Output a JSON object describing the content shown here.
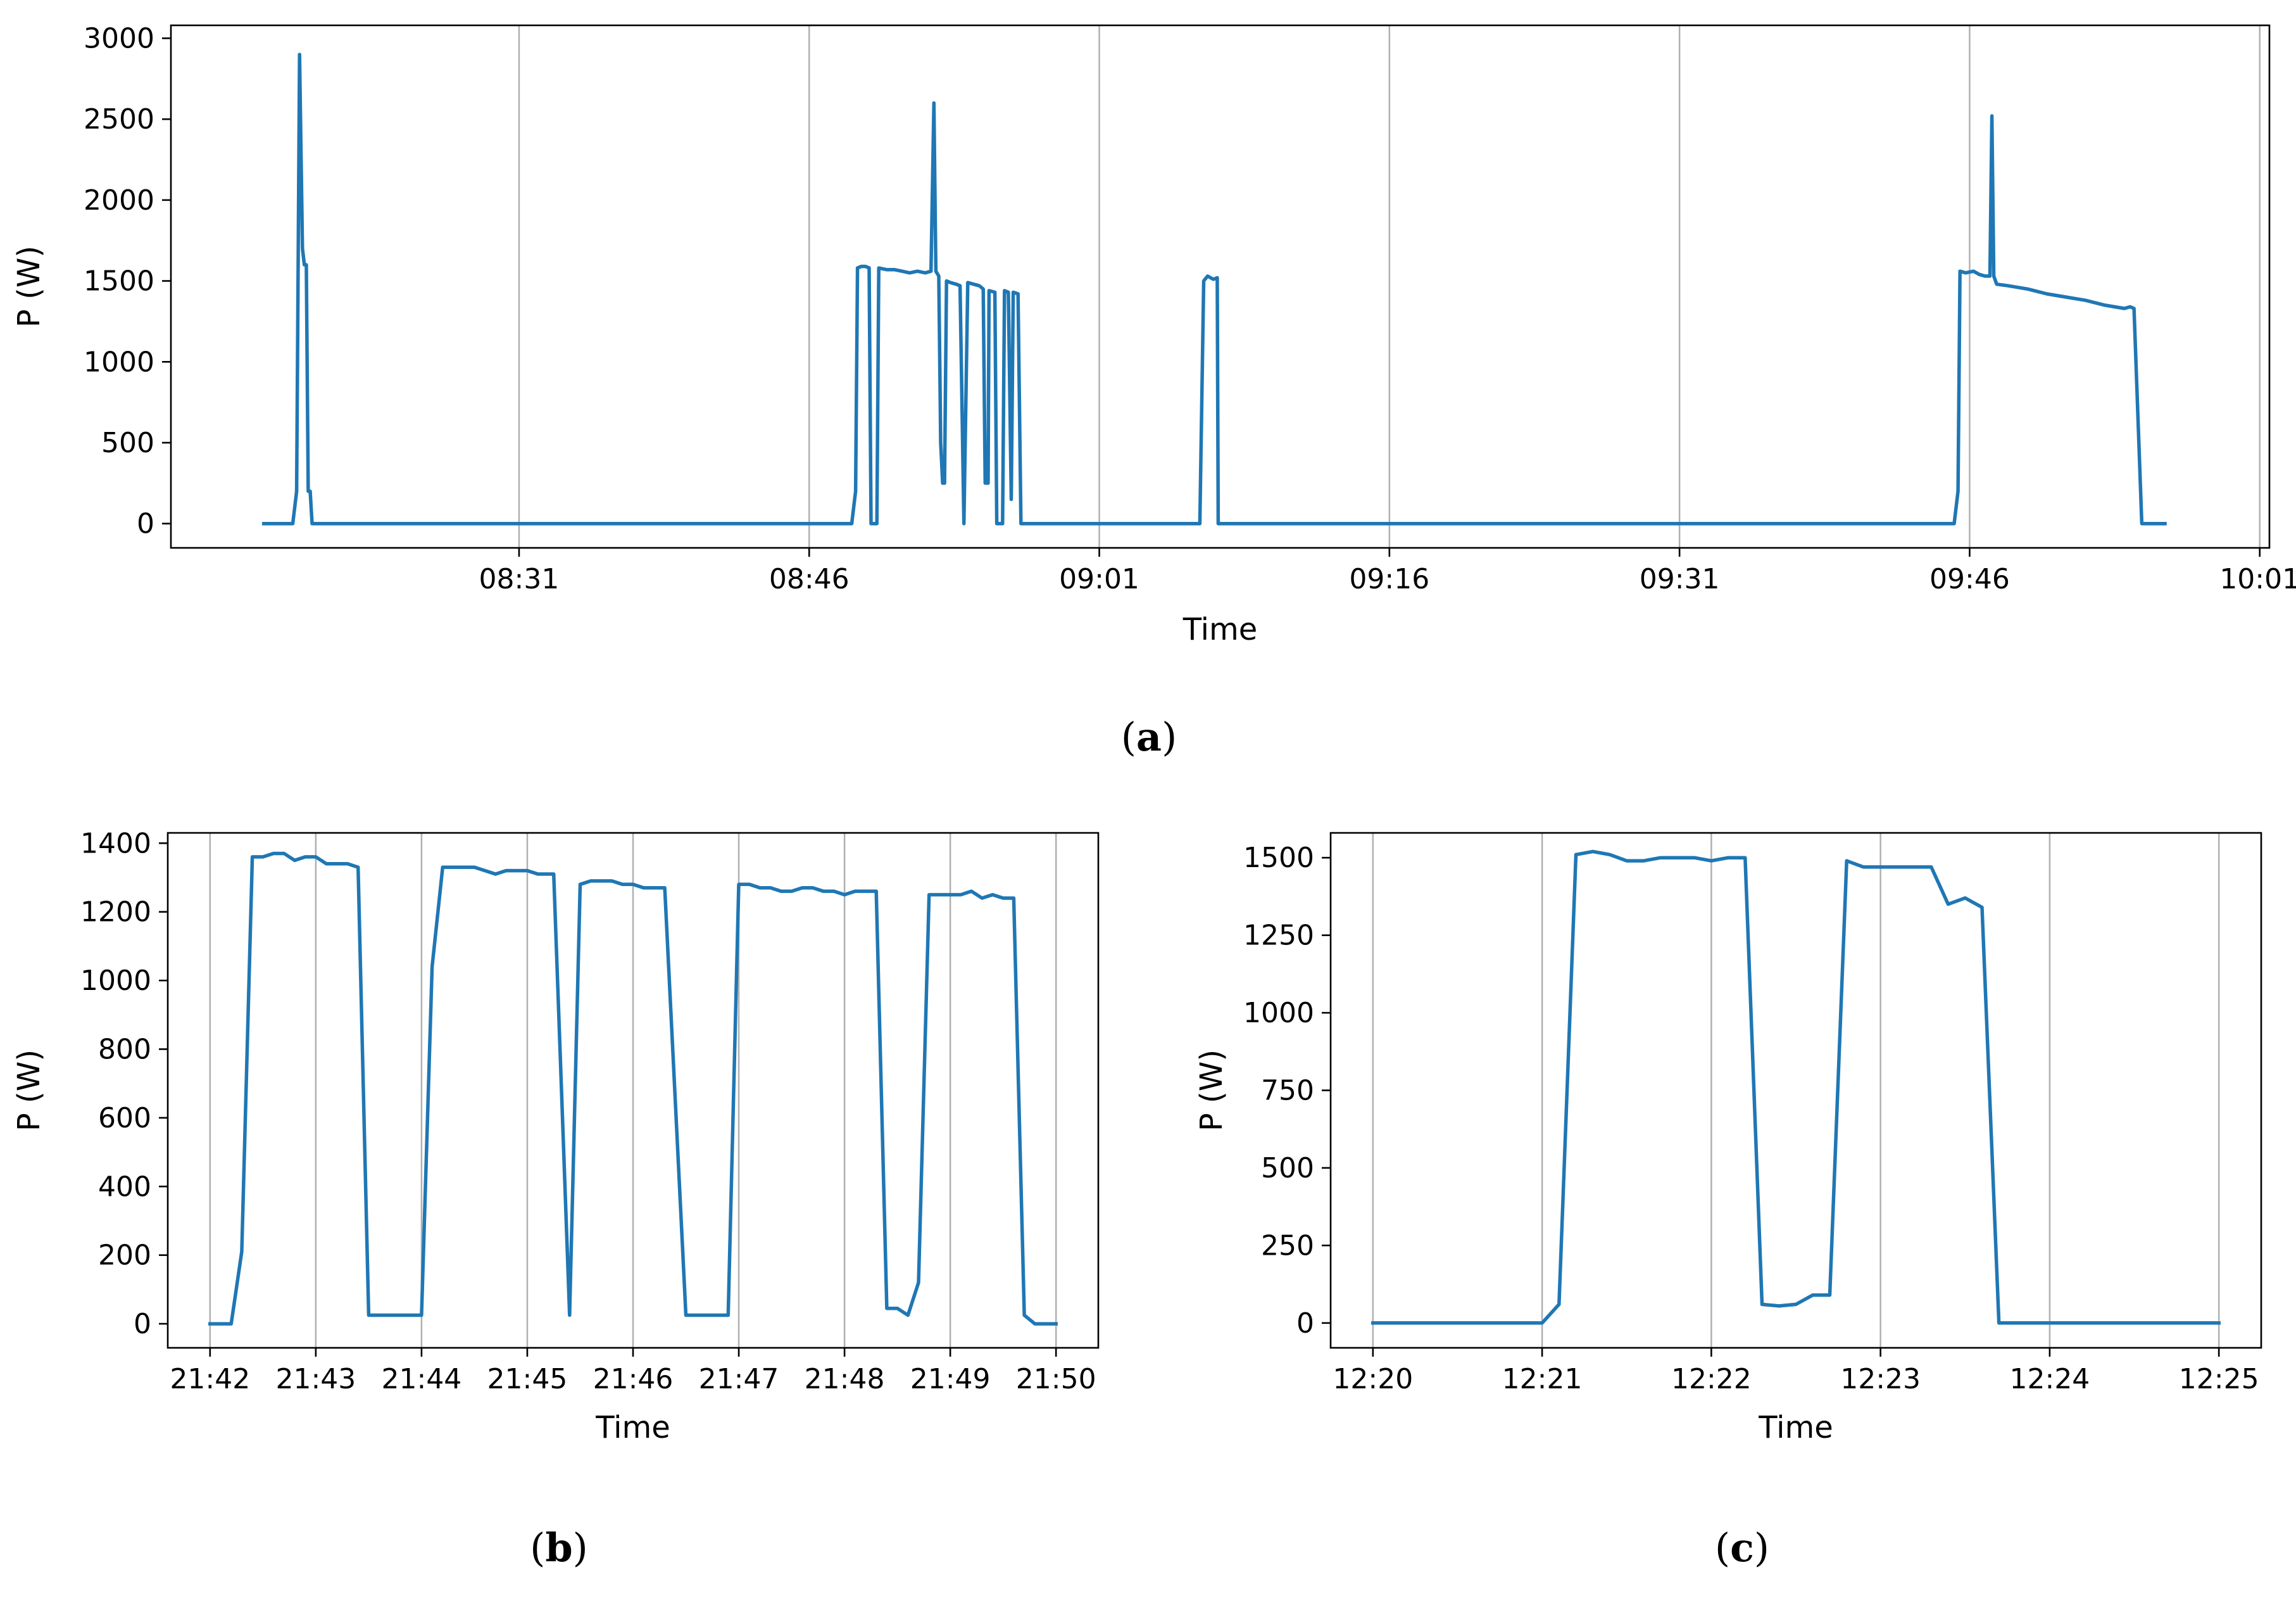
{
  "chart_data": [
    {
      "id": "a",
      "type": "line",
      "caption_letter": "a",
      "xlabel": "Time",
      "ylabel": "P (W)",
      "x_unit": "minutes since 08:13",
      "xlim": [
        0,
        108.5
      ],
      "ylim": [
        -150,
        3080
      ],
      "yticks": [
        0,
        500,
        1000,
        1500,
        2000,
        2500,
        3000
      ],
      "ytick_labels": [
        "0",
        "500",
        "1000",
        "1500",
        "2000",
        "2500",
        "3000"
      ],
      "xticks": [
        18,
        33,
        48,
        63,
        78,
        93,
        108
      ],
      "xtick_labels": [
        "08:31",
        "08:46",
        "09:01",
        "09:16",
        "09:31",
        "09:46",
        "10:01"
      ],
      "grid": "vertical",
      "color": "#1f77b4",
      "series": [
        {
          "name": "P (W)",
          "points": [
            [
              4.8,
              0
            ],
            [
              6.3,
              0
            ],
            [
              6.5,
              200
            ],
            [
              6.65,
              2900
            ],
            [
              6.8,
              1700
            ],
            [
              6.9,
              1600
            ],
            [
              7.0,
              1600
            ],
            [
              7.1,
              200
            ],
            [
              7.2,
              200
            ],
            [
              7.3,
              0
            ],
            [
              35.2,
              0
            ],
            [
              35.4,
              200
            ],
            [
              35.5,
              1580
            ],
            [
              35.7,
              1590
            ],
            [
              35.9,
              1590
            ],
            [
              36.1,
              1580
            ],
            [
              36.2,
              0
            ],
            [
              36.5,
              0
            ],
            [
              36.6,
              1580
            ],
            [
              37.0,
              1570
            ],
            [
              37.4,
              1570
            ],
            [
              37.8,
              1560
            ],
            [
              38.2,
              1550
            ],
            [
              38.6,
              1560
            ],
            [
              39.0,
              1550
            ],
            [
              39.3,
              1560
            ],
            [
              39.45,
              2600
            ],
            [
              39.55,
              1560
            ],
            [
              39.7,
              1530
            ],
            [
              39.8,
              500
            ],
            [
              39.9,
              250
            ],
            [
              40.0,
              250
            ],
            [
              40.1,
              1500
            ],
            [
              40.3,
              1490
            ],
            [
              40.6,
              1480
            ],
            [
              40.8,
              1470
            ],
            [
              41.0,
              0
            ],
            [
              41.2,
              1490
            ],
            [
              41.5,
              1480
            ],
            [
              41.8,
              1470
            ],
            [
              42.0,
              1450
            ],
            [
              42.1,
              250
            ],
            [
              42.25,
              250
            ],
            [
              42.3,
              1440
            ],
            [
              42.6,
              1430
            ],
            [
              42.7,
              0
            ],
            [
              43.0,
              0
            ],
            [
              43.1,
              1440
            ],
            [
              43.3,
              1430
            ],
            [
              43.45,
              150
            ],
            [
              43.55,
              1430
            ],
            [
              43.8,
              1420
            ],
            [
              43.95,
              0
            ],
            [
              53.2,
              0
            ],
            [
              53.4,
              1500
            ],
            [
              53.6,
              1530
            ],
            [
              53.9,
              1510
            ],
            [
              54.1,
              1520
            ],
            [
              54.15,
              0
            ],
            [
              92.2,
              0
            ],
            [
              92.4,
              200
            ],
            [
              92.5,
              1560
            ],
            [
              92.8,
              1550
            ],
            [
              93.2,
              1560
            ],
            [
              93.5,
              1540
            ],
            [
              93.8,
              1530
            ],
            [
              94.05,
              1530
            ],
            [
              94.15,
              2520
            ],
            [
              94.25,
              1530
            ],
            [
              94.4,
              1480
            ],
            [
              95.0,
              1470
            ],
            [
              96.0,
              1450
            ],
            [
              97.0,
              1420
            ],
            [
              98.0,
              1400
            ],
            [
              99.0,
              1380
            ],
            [
              100.0,
              1350
            ],
            [
              101.0,
              1330
            ],
            [
              101.3,
              1340
            ],
            [
              101.5,
              1330
            ],
            [
              101.9,
              0
            ],
            [
              103.1,
              0
            ]
          ]
        }
      ]
    },
    {
      "id": "b",
      "type": "line",
      "caption_letter": "b",
      "xlabel": "Time",
      "ylabel": "P (W)",
      "x_unit": "minutes since 21:42",
      "xlim": [
        -0.4,
        8.4
      ],
      "ylim": [
        -70,
        1430
      ],
      "yticks": [
        0,
        200,
        400,
        600,
        800,
        1000,
        1200,
        1400
      ],
      "ytick_labels": [
        "0",
        "200",
        "400",
        "600",
        "800",
        "1000",
        "1200",
        "1400"
      ],
      "xticks": [
        0,
        1,
        2,
        3,
        4,
        5,
        6,
        7,
        8
      ],
      "xtick_labels": [
        "21:42",
        "21:43",
        "21:44",
        "21:45",
        "21:46",
        "21:47",
        "21:48",
        "21:49",
        "21:50"
      ],
      "grid": "vertical",
      "color": "#1f77b4",
      "series": [
        {
          "name": "P (W)",
          "points": [
            [
              0.0,
              0
            ],
            [
              0.2,
              0
            ],
            [
              0.3,
              210
            ],
            [
              0.4,
              1360
            ],
            [
              0.5,
              1360
            ],
            [
              0.6,
              1370
            ],
            [
              0.7,
              1370
            ],
            [
              0.8,
              1350
            ],
            [
              0.9,
              1360
            ],
            [
              1.0,
              1360
            ],
            [
              1.1,
              1340
            ],
            [
              1.2,
              1340
            ],
            [
              1.3,
              1340
            ],
            [
              1.4,
              1330
            ],
            [
              1.5,
              25
            ],
            [
              1.6,
              25
            ],
            [
              1.7,
              25
            ],
            [
              1.8,
              25
            ],
            [
              2.0,
              25
            ],
            [
              2.1,
              1040
            ],
            [
              2.2,
              1330
            ],
            [
              2.3,
              1330
            ],
            [
              2.4,
              1330
            ],
            [
              2.5,
              1330
            ],
            [
              2.6,
              1320
            ],
            [
              2.7,
              1310
            ],
            [
              2.8,
              1320
            ],
            [
              2.9,
              1320
            ],
            [
              3.0,
              1320
            ],
            [
              3.1,
              1310
            ],
            [
              3.2,
              1310
            ],
            [
              3.25,
              1310
            ],
            [
              3.4,
              25
            ],
            [
              3.5,
              1280
            ],
            [
              3.6,
              1290
            ],
            [
              3.7,
              1290
            ],
            [
              3.8,
              1290
            ],
            [
              3.9,
              1280
            ],
            [
              4.0,
              1280
            ],
            [
              4.1,
              1270
            ],
            [
              4.2,
              1270
            ],
            [
              4.3,
              1270
            ],
            [
              4.5,
              25
            ],
            [
              4.6,
              25
            ],
            [
              4.8,
              25
            ],
            [
              4.9,
              25
            ],
            [
              5.0,
              1280
            ],
            [
              5.1,
              1280
            ],
            [
              5.2,
              1270
            ],
            [
              5.3,
              1270
            ],
            [
              5.4,
              1260
            ],
            [
              5.5,
              1260
            ],
            [
              5.6,
              1270
            ],
            [
              5.7,
              1270
            ],
            [
              5.8,
              1260
            ],
            [
              5.9,
              1260
            ],
            [
              6.0,
              1250
            ],
            [
              6.1,
              1260
            ],
            [
              6.2,
              1260
            ],
            [
              6.3,
              1260
            ],
            [
              6.4,
              45
            ],
            [
              6.5,
              45
            ],
            [
              6.6,
              25
            ],
            [
              6.7,
              120
            ],
            [
              6.8,
              1250
            ],
            [
              6.9,
              1250
            ],
            [
              7.0,
              1250
            ],
            [
              7.1,
              1250
            ],
            [
              7.2,
              1260
            ],
            [
              7.3,
              1240
            ],
            [
              7.4,
              1250
            ],
            [
              7.5,
              1240
            ],
            [
              7.6,
              1240
            ],
            [
              7.7,
              25
            ],
            [
              7.8,
              0
            ],
            [
              8.0,
              0
            ]
          ]
        }
      ]
    },
    {
      "id": "c",
      "type": "line",
      "caption_letter": "c",
      "xlabel": "Time",
      "ylabel": "P (W)",
      "x_unit": "minutes since 12:20",
      "xlim": [
        -0.25,
        5.25
      ],
      "ylim": [
        -80,
        1580
      ],
      "yticks": [
        0,
        250,
        500,
        750,
        1000,
        1250,
        1500
      ],
      "ytick_labels": [
        "0",
        "250",
        "500",
        "750",
        "1000",
        "1250",
        "1500"
      ],
      "xticks": [
        0,
        1,
        2,
        3,
        4,
        5
      ],
      "xtick_labels": [
        "12:20",
        "12:21",
        "12:22",
        "12:23",
        "12:24",
        "12:25"
      ],
      "grid": "vertical",
      "color": "#1f77b4",
      "series": [
        {
          "name": "P (W)",
          "points": [
            [
              0.0,
              0
            ],
            [
              1.0,
              0
            ],
            [
              1.1,
              60
            ],
            [
              1.2,
              1510
            ],
            [
              1.3,
              1520
            ],
            [
              1.4,
              1510
            ],
            [
              1.5,
              1490
            ],
            [
              1.6,
              1490
            ],
            [
              1.7,
              1500
            ],
            [
              1.8,
              1500
            ],
            [
              1.9,
              1500
            ],
            [
              2.0,
              1490
            ],
            [
              2.1,
              1500
            ],
            [
              2.2,
              1500
            ],
            [
              2.3,
              60
            ],
            [
              2.4,
              55
            ],
            [
              2.5,
              60
            ],
            [
              2.6,
              90
            ],
            [
              2.7,
              90
            ],
            [
              2.8,
              1490
            ],
            [
              2.9,
              1470
            ],
            [
              3.0,
              1470
            ],
            [
              3.1,
              1470
            ],
            [
              3.2,
              1470
            ],
            [
              3.3,
              1470
            ],
            [
              3.4,
              1350
            ],
            [
              3.5,
              1370
            ],
            [
              3.6,
              1340
            ],
            [
              3.7,
              0
            ],
            [
              5.0,
              0
            ]
          ]
        }
      ]
    }
  ]
}
